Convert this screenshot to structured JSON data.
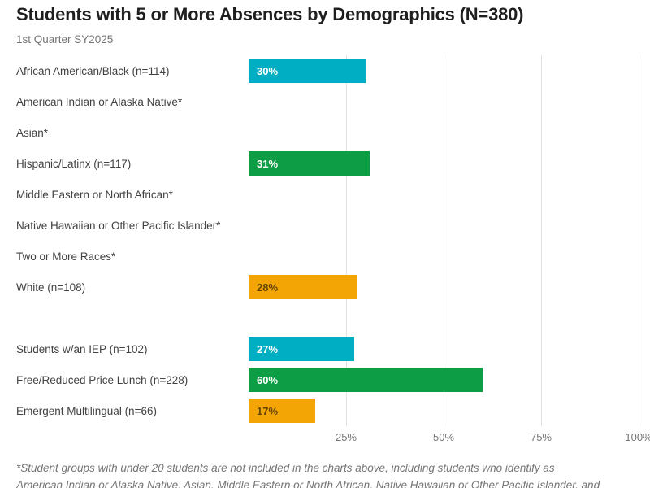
{
  "colors": {
    "cyan": "#00aec3",
    "green": "#0d9d45",
    "orange": "#f2a504",
    "gridline": "#e3e3e3",
    "title_text": "#1f1f1f",
    "muted_text": "#757575",
    "label_text": "#424242"
  },
  "chart_data": {
    "type": "bar",
    "orientation": "horizontal",
    "title": "Students with 5 or More Absences by Demographics (N=380)",
    "subtitle": "1st Quarter SY2025",
    "xlabel": "",
    "ylabel": "",
    "xlim": [
      0,
      100
    ],
    "x_tick_values": [
      25,
      50,
      75,
      100
    ],
    "x_ticks": [
      "25%",
      "50%",
      "75%",
      "100%"
    ],
    "grid": "vertical",
    "legend": "none",
    "rows": [
      {
        "label": "African American/Black (n=114)",
        "value": 30,
        "display": "30%",
        "color": "cyan",
        "value_label_tone": "light",
        "spacer": false
      },
      {
        "label": "American Indian or Alaska Native*",
        "value": null,
        "display": "",
        "color": null,
        "value_label_tone": null,
        "spacer": false
      },
      {
        "label": "Asian*",
        "value": null,
        "display": "",
        "color": null,
        "value_label_tone": null,
        "spacer": false
      },
      {
        "label": "Hispanic/Latinx (n=117)",
        "value": 31,
        "display": "31%",
        "color": "green",
        "value_label_tone": "light",
        "spacer": false
      },
      {
        "label": "Middle Eastern or North African*",
        "value": null,
        "display": "",
        "color": null,
        "value_label_tone": null,
        "spacer": false
      },
      {
        "label": "Native Hawaiian or Other Pacific Islander*",
        "value": null,
        "display": "",
        "color": null,
        "value_label_tone": null,
        "spacer": false
      },
      {
        "label": "Two or More Races*",
        "value": null,
        "display": "",
        "color": null,
        "value_label_tone": null,
        "spacer": false
      },
      {
        "label": "White (n=108)",
        "value": 28,
        "display": "28%",
        "color": "orange",
        "value_label_tone": "dark",
        "spacer": false
      },
      {
        "label": "",
        "value": null,
        "display": "",
        "color": null,
        "value_label_tone": null,
        "spacer": true
      },
      {
        "label": "Students w/an IEP (n=102)",
        "value": 27,
        "display": "27%",
        "color": "cyan",
        "value_label_tone": "light",
        "spacer": false
      },
      {
        "label": "Free/Reduced Price Lunch (n=228)",
        "value": 60,
        "display": "60%",
        "color": "green",
        "value_label_tone": "light",
        "spacer": false
      },
      {
        "label": "Emergent Multilingual (n=66)",
        "value": 17,
        "display": "17%",
        "color": "orange",
        "value_label_tone": "dark",
        "spacer": false
      }
    ],
    "footnote_line1": "*Student groups with under 20 students are not included in the charts above, including students who identify as",
    "footnote_line2": "American Indian or Alaska Native, Asian, Middle Eastern or North African, Native Hawaiian or Other Pacific Islander, and"
  }
}
